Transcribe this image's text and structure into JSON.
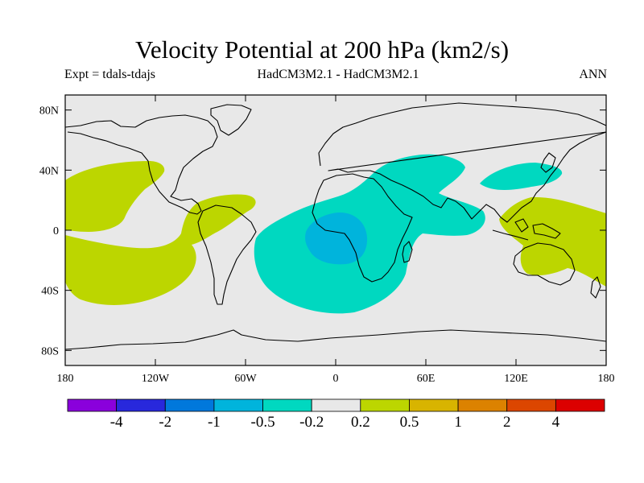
{
  "title": "Velocity Potential at 200 hPa (km2/s)",
  "subtitle_left": "Expt = tdals-tdajs",
  "subtitle_center": "HadCM3M2.1 - HadCM3M2.1",
  "subtitle_right": "ANN",
  "map": {
    "background_color": "#e8e8e8",
    "lat_ticks": [
      {
        "lat": 80,
        "label": "80N"
      },
      {
        "lat": 40,
        "label": "40N"
      },
      {
        "lat": 0,
        "label": "0"
      },
      {
        "lat": -40,
        "label": "40S"
      },
      {
        "lat": -80,
        "label": "80S"
      }
    ],
    "lon_ticks": [
      {
        "lon": -180,
        "label": "180"
      },
      {
        "lon": -120,
        "label": "120W"
      },
      {
        "lon": -60,
        "label": "60W"
      },
      {
        "lon": 0,
        "label": "0"
      },
      {
        "lon": 60,
        "label": "60E"
      },
      {
        "lon": 120,
        "label": "120E"
      },
      {
        "lon": 180,
        "label": "180"
      }
    ],
    "regions": [
      {
        "name": "positive-north-pacific-region",
        "level": "0.2 to 0.5",
        "color": "#bcd600"
      },
      {
        "name": "positive-south-pacific-region",
        "level": "0.2 to 0.5",
        "color": "#bcd600"
      },
      {
        "name": "positive-west-pacific-region",
        "level": "0.2 to 0.5",
        "color": "#bcd600"
      },
      {
        "name": "negative-africa-atlantic-region",
        "level": "-0.5 to -0.2",
        "color": "#00d8c0"
      },
      {
        "name": "negative-east-asia-region",
        "level": "-0.5 to -0.2",
        "color": "#00d8c0"
      },
      {
        "name": "negative-central-africa-core",
        "level": "-1 to -0.5",
        "color": "#00b4dc"
      }
    ]
  },
  "colorbar": {
    "colors": [
      "#8a00dc",
      "#2828dc",
      "#0078dc",
      "#00b4dc",
      "#00d8c0",
      "#e8e8e8",
      "#bcd600",
      "#d8b400",
      "#dc8200",
      "#dc4600",
      "#dc0000"
    ],
    "labels": [
      "-4",
      "-2",
      "-1",
      "-0.5",
      "-0.2",
      "0.2",
      "0.5",
      "1",
      "2",
      "4"
    ]
  }
}
